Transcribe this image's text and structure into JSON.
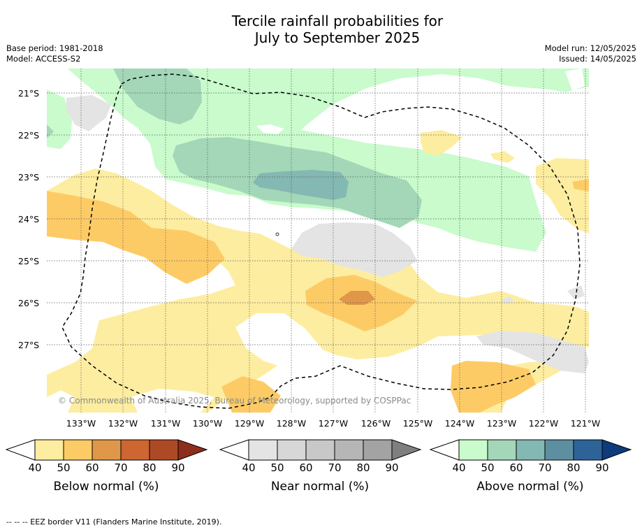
{
  "title_line1": "Tercile rainfall probabilities for",
  "title_line2": "July to September 2025",
  "meta_left": [
    "Base period: 1981-2018",
    "Model: ACCESS-S2"
  ],
  "meta_right": [
    "Model run: 12/05/2025",
    "Issued: 14/05/2025"
  ],
  "lat_labels": [
    "21°S",
    "22°S",
    "23°S",
    "24°S",
    "25°S",
    "26°S",
    "27°S"
  ],
  "lon_labels": [
    "133°W",
    "132°W",
    "131°W",
    "130°W",
    "129°W",
    "128°W",
    "127°W",
    "126°W",
    "125°W",
    "124°W",
    "123°W",
    "122°W",
    "121°W"
  ],
  "copyright": "© Commonwealth of Australia 2025, Bureau of Meteorology, supported by COSPPac",
  "footer": "--  --  -- EEZ border V11 (Flanders Marine Institute, 2019).",
  "colorbars": [
    {
      "title": "Below normal (%)",
      "ticks": [
        "40",
        "50",
        "60",
        "70",
        "80",
        "90"
      ],
      "colors": [
        "#fdeda0",
        "#fdcb66",
        "#e0974a",
        "#cd6631",
        "#ad4a26",
        "#8d2e1c"
      ]
    },
    {
      "title": "Near normal (%)",
      "ticks": [
        "40",
        "50",
        "60",
        "70",
        "80",
        "90"
      ],
      "colors": [
        "#e4e4e4",
        "#d7d7d7",
        "#c8c8c8",
        "#b6b6b6",
        "#a3a3a3",
        "#7f7f7f"
      ]
    },
    {
      "title": "Above normal (%)",
      "ticks": [
        "40",
        "50",
        "60",
        "70",
        "80",
        "90"
      ],
      "colors": [
        "#c9fbcc",
        "#a3d7b8",
        "#84b8b2",
        "#5d8fa0",
        "#2e6398",
        "#0d3b7c"
      ]
    }
  ]
}
